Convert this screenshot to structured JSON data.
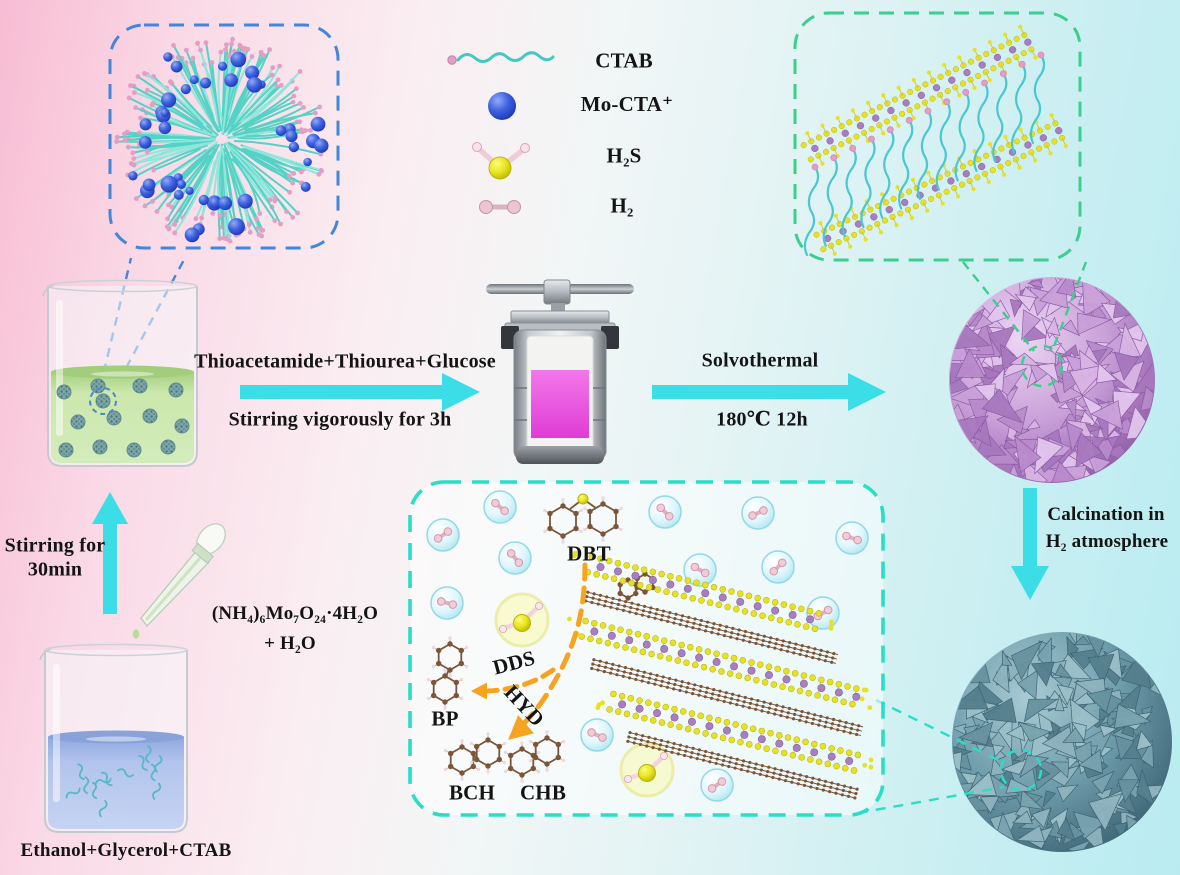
{
  "figure": {
    "description": "Synthesis scheme of CTAB-templated MoS2/C nanoflower catalyst for hydrodesulfurization"
  },
  "legend": {
    "items": [
      {
        "icon": "ctab-chain-icon",
        "label": "CTAB"
      },
      {
        "icon": "mo-cta-sphere-icon",
        "label": "Mo-CTA⁺"
      },
      {
        "icon": "h2s-molecule-icon",
        "label": "H₂S"
      },
      {
        "icon": "h2-molecule-icon",
        "label": "H₂"
      }
    ]
  },
  "process": {
    "step1_above": "Thioacetamide+Thiourea+Glucose",
    "step1_below": "Stirring vigorously for 3h",
    "step2_above": "Solvothermal",
    "step2_below": "180℃ 12h",
    "stir_line1": "Stirring for",
    "stir_line2": "30min",
    "calcination_line1": "Calcination in",
    "calcination_line2": "H₂ atmosphere"
  },
  "reagents": {
    "dropper_line1": "(NH₄)₆Mo₇O₂₄·4H₂O",
    "dropper_line2": "+ H₂O",
    "beaker_bottom": "Ethanol+Glycerol+CTAB"
  },
  "reaction_box": {
    "dbt": "DBT",
    "dds": "DDS",
    "hyd": "HYD",
    "bp": "BP",
    "bch": "BCH",
    "chb": "CHB"
  },
  "colors": {
    "arrow_cyan": "#3bdde6",
    "dash_blue": "#4387d8",
    "dash_green": "#3bcf8e",
    "dash_teal": "#27dfc6",
    "orange": "#f6a41f",
    "mo_purple": "#a77fc0",
    "s_yellow": "#e6e223",
    "carbon_brown": "#7a5538",
    "ctab_teal": "#4fd0c5",
    "ctab_head_pink": "#e39ec4",
    "mo_cta_blue": "#2e55d4",
    "h2_pink": "#e9bcc9",
    "flower_purple": "#c79bd6",
    "flower_teal": "#6b98a6",
    "liquid_green": "#c9e6ab",
    "liquid_blue": "#aabfe9",
    "liquid_magenta": "#ee5ce2",
    "background_left": "#f8bcd3",
    "background_right": "#b9ecf1"
  }
}
